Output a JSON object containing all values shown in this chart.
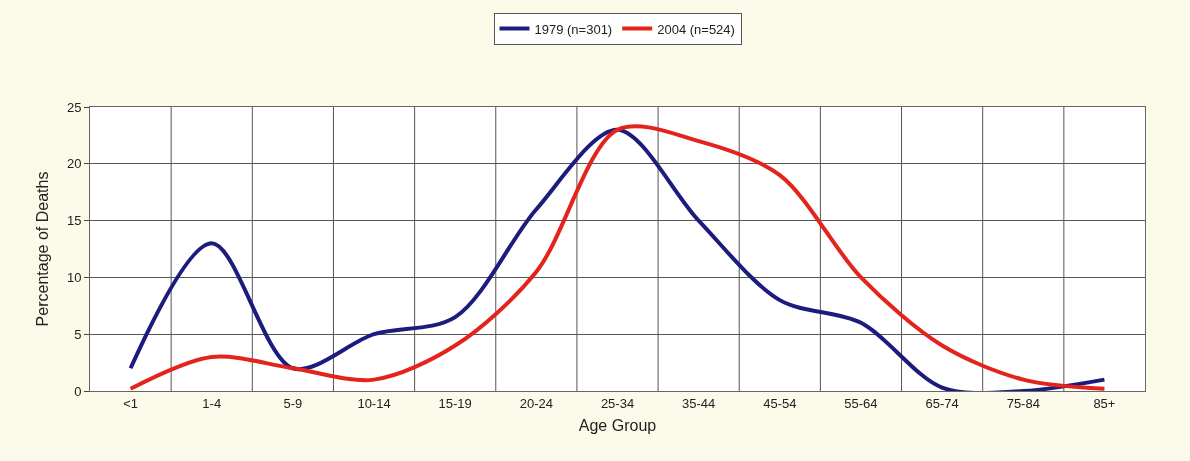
{
  "chart_data": {
    "type": "line",
    "xlabel": "Age Group",
    "ylabel": "Percentage of Deaths",
    "categories": [
      "<1",
      "1-4",
      "5-9",
      "10-14",
      "15-19",
      "20-24",
      "25-34",
      "35-44",
      "45-54",
      "55-64",
      "65-74",
      "75-84",
      "85+"
    ],
    "series": [
      {
        "name": "1979 (n=301)",
        "color": "#1c1c7e",
        "values": [
          2,
          13,
          2,
          5,
          6.5,
          16,
          23,
          15,
          8,
          6,
          0.3,
          0,
          1
        ]
      },
      {
        "name": "2004 (n=524)",
        "color": "#e3231c",
        "values": [
          0.2,
          3,
          2,
          1,
          4,
          10.5,
          23,
          22,
          19,
          10,
          4,
          1,
          0.2
        ]
      }
    ],
    "ylim": [
      0,
      25
    ],
    "yticks": [
      0,
      5,
      10,
      15,
      20,
      25
    ],
    "grid": true,
    "legend": "top",
    "marker": "none",
    "line_style": "solid"
  }
}
